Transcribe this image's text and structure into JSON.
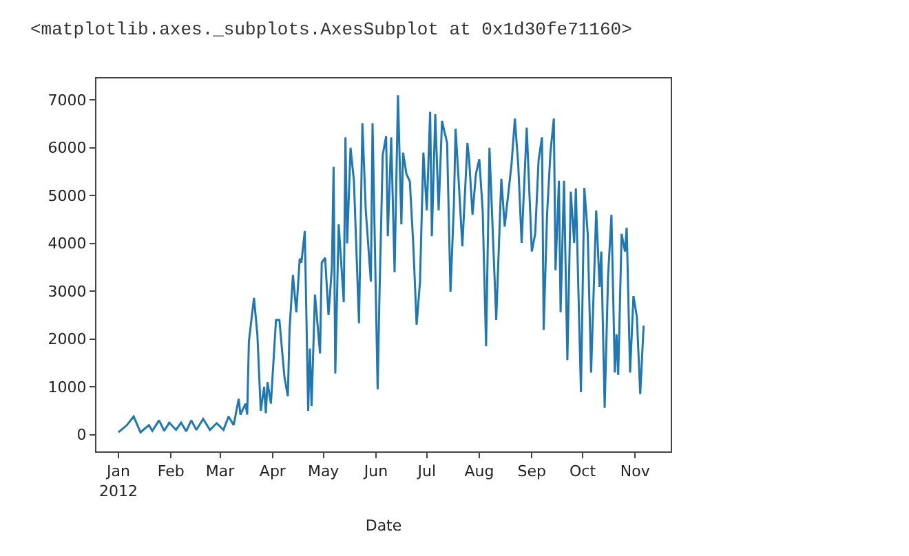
{
  "chart_data": {
    "type": "line",
    "xlabel": "Date",
    "color": "#1f77b4",
    "line_style": "solid",
    "marker": "none",
    "annotations": [
      "<matplotlib.axes._subplots.AxesSubplot at 0x1d30fe71160>"
    ],
    "x": [
      "2012-01-01",
      "2012-01-06",
      "2012-01-10",
      "2012-01-14",
      "2012-01-19",
      "2012-01-21",
      "2012-01-25",
      "2012-01-28",
      "2012-01-31",
      "2012-02-04",
      "2012-02-07",
      "2012-02-10",
      "2012-02-13",
      "2012-02-16",
      "2012-02-20",
      "2012-02-24",
      "2012-02-28",
      "2012-03-03",
      "2012-03-06",
      "2012-03-09",
      "2012-03-12",
      "2012-03-13",
      "2012-03-16",
      "2012-03-17",
      "2012-03-18",
      "2012-03-21",
      "2012-03-23",
      "2012-03-25",
      "2012-03-27",
      "2012-03-28",
      "2012-03-29",
      "2012-03-31",
      "2012-04-03",
      "2012-04-05",
      "2012-04-08",
      "2012-04-10",
      "2012-04-11",
      "2012-04-13",
      "2012-04-15",
      "2012-04-17",
      "2012-04-18",
      "2012-04-20",
      "2012-04-22",
      "2012-04-23",
      "2012-04-24",
      "2012-04-26",
      "2012-04-29",
      "2012-04-30",
      "2012-05-02",
      "2012-05-04",
      "2012-05-06",
      "2012-05-07",
      "2012-05-08",
      "2012-05-10",
      "2012-05-13",
      "2012-05-14",
      "2012-05-15",
      "2012-05-17",
      "2012-05-19",
      "2012-05-22",
      "2012-05-24",
      "2012-05-26",
      "2012-05-29",
      "2012-05-30",
      "2012-06-02",
      "2012-06-03",
      "2012-06-05",
      "2012-06-07",
      "2012-06-08",
      "2012-06-10",
      "2012-06-12",
      "2012-06-14",
      "2012-06-16",
      "2012-06-17",
      "2012-06-19",
      "2012-06-21",
      "2012-06-23",
      "2012-06-25",
      "2012-06-27",
      "2012-06-29",
      "2012-07-01",
      "2012-07-03",
      "2012-07-04",
      "2012-07-06",
      "2012-07-08",
      "2012-07-10",
      "2012-07-13",
      "2012-07-15",
      "2012-07-17",
      "2012-07-18",
      "2012-07-20",
      "2012-07-22",
      "2012-07-25",
      "2012-07-26",
      "2012-07-28",
      "2012-07-30",
      "2012-08-01",
      "2012-08-03",
      "2012-08-05",
      "2012-08-07",
      "2012-08-11",
      "2012-08-14",
      "2012-08-16",
      "2012-08-17",
      "2012-08-20",
      "2012-08-22",
      "2012-08-24",
      "2012-08-26",
      "2012-08-29",
      "2012-09-01",
      "2012-09-03",
      "2012-09-05",
      "2012-09-07",
      "2012-09-08",
      "2012-09-10",
      "2012-09-12",
      "2012-09-14",
      "2012-09-15",
      "2012-09-17",
      "2012-09-18",
      "2012-09-20",
      "2012-09-22",
      "2012-09-24",
      "2012-09-26",
      "2012-09-27",
      "2012-09-30",
      "2012-10-02",
      "2012-10-04",
      "2012-10-06",
      "2012-10-09",
      "2012-10-11",
      "2012-10-12",
      "2012-10-14",
      "2012-10-16",
      "2012-10-18",
      "2012-10-20",
      "2012-10-21",
      "2012-10-22",
      "2012-10-24",
      "2012-10-26",
      "2012-10-27",
      "2012-10-29",
      "2012-10-31",
      "2012-11-02",
      "2012-11-04",
      "2012-11-06"
    ],
    "values": [
      50,
      200,
      380,
      50,
      200,
      80,
      300,
      80,
      250,
      100,
      250,
      70,
      300,
      100,
      330,
      100,
      240,
      100,
      380,
      200,
      750,
      420,
      650,
      420,
      1950,
      2860,
      2100,
      500,
      1000,
      450,
      1100,
      650,
      2400,
      2400,
      1200,
      800,
      2200,
      3340,
      2560,
      3680,
      3600,
      4260,
      500,
      1800,
      600,
      2930,
      1700,
      3600,
      3700,
      2500,
      3500,
      5600,
      1280,
      4400,
      2770,
      6220,
      4000,
      6000,
      5310,
      2330,
      6510,
      4690,
      3200,
      6510,
      950,
      2770,
      5850,
      6240,
      4150,
      6220,
      3400,
      7100,
      4400,
      5900,
      5450,
      5300,
      4000,
      2300,
      3200,
      5900,
      4690,
      6750,
      4150,
      6700,
      4690,
      6560,
      6100,
      2990,
      4800,
      6400,
      5200,
      3940,
      6100,
      5760,
      4600,
      5450,
      5760,
      4690,
      1850,
      6000,
      2400,
      5350,
      4350,
      4690,
      5640,
      6610,
      5640,
      4010,
      6420,
      3830,
      4200,
      5740,
      6220,
      2190,
      4600,
      5900,
      6610,
      3440,
      5310,
      2560,
      5310,
      1560,
      5080,
      4010,
      5150,
      890,
      5160,
      4200,
      1300,
      4690,
      3090,
      3830,
      560,
      3300,
      4600,
      1300,
      2100,
      1250,
      4200,
      3830,
      4330,
      1300,
      2900,
      2470,
      850,
      2280
    ],
    "xlim": [
      "2011-12-19",
      "2012-11-22"
    ],
    "xticks": [
      {
        "value": "2012-01-01",
        "label": "Jan\n2012"
      },
      {
        "value": "2012-02-01",
        "label": "Feb"
      },
      {
        "value": "2012-03-01",
        "label": "Mar"
      },
      {
        "value": "2012-04-01",
        "label": "Apr"
      },
      {
        "value": "2012-05-01",
        "label": "May"
      },
      {
        "value": "2012-06-01",
        "label": "Jun"
      },
      {
        "value": "2012-07-01",
        "label": "Jul"
      },
      {
        "value": "2012-08-01",
        "label": "Aug"
      },
      {
        "value": "2012-09-01",
        "label": "Sep"
      },
      {
        "value": "2012-10-01",
        "label": "Oct"
      },
      {
        "value": "2012-11-01",
        "label": "Nov"
      }
    ],
    "ylim": [
      -350,
      7450
    ],
    "yticks": [
      0,
      1000,
      2000,
      3000,
      4000,
      5000,
      6000,
      7000
    ]
  }
}
